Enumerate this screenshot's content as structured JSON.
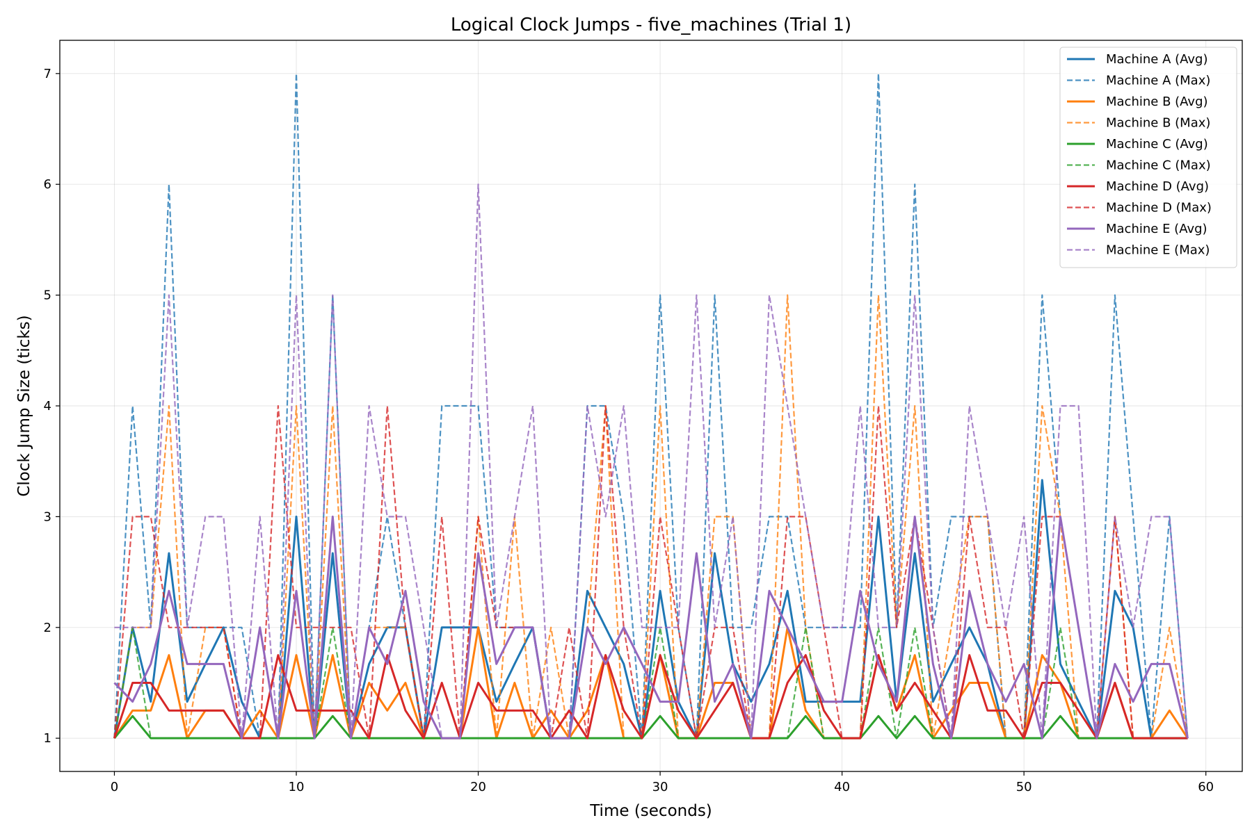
{
  "chart_data": {
    "type": "line",
    "title": "Logical Clock Jumps - five_machines (Trial 1)",
    "xlabel": "Time (seconds)",
    "ylabel": "Clock Jump Size (ticks)",
    "xlim": [
      -3,
      62
    ],
    "ylim": [
      0.7,
      7.3
    ],
    "xticks": [
      0,
      10,
      20,
      30,
      40,
      50,
      60
    ],
    "yticks": [
      1,
      2,
      3,
      4,
      5,
      6,
      7
    ],
    "grid": true,
    "legend_position": "top-right",
    "x": [
      0,
      1,
      2,
      3,
      4,
      5,
      6,
      7,
      8,
      9,
      10,
      11,
      12,
      13,
      14,
      15,
      16,
      17,
      18,
      19,
      20,
      21,
      22,
      23,
      24,
      25,
      26,
      27,
      28,
      29,
      30,
      31,
      32,
      33,
      34,
      35,
      36,
      37,
      38,
      39,
      40,
      41,
      42,
      43,
      44,
      45,
      46,
      47,
      48,
      49,
      50,
      51,
      52,
      53,
      54,
      55,
      56,
      57,
      58,
      59
    ],
    "series": [
      {
        "name": "Machine A (Avg)",
        "color": "#1f77b4",
        "style": "solid",
        "values": [
          1,
          2,
          1.33,
          2.67,
          1.33,
          1.67,
          2,
          1.33,
          1,
          1,
          3,
          1,
          2.67,
          1,
          1.67,
          2,
          2,
          1,
          2,
          2,
          2,
          1.33,
          1.67,
          2,
          1,
          1,
          2.33,
          2,
          1.67,
          1,
          2.33,
          1.33,
          1,
          2.67,
          1.67,
          1.33,
          1.67,
          2.33,
          1.33,
          1.33,
          1.33,
          1.33,
          3,
          1.33,
          2.67,
          1.33,
          1.67,
          2,
          1.67,
          1,
          1,
          3.33,
          1.67,
          1.33,
          1,
          2.33,
          2,
          1,
          1,
          1
        ]
      },
      {
        "name": "Machine A (Max)",
        "color": "#1f77b4",
        "style": "dashed",
        "values": [
          1,
          4,
          2,
          6,
          2,
          2,
          2,
          2,
          1,
          1,
          7,
          1,
          5,
          1,
          2,
          3,
          2,
          1,
          4,
          4,
          4,
          2,
          2,
          2,
          1,
          1,
          4,
          4,
          3,
          1,
          5,
          2,
          1,
          5,
          2,
          2,
          3,
          3,
          2,
          2,
          2,
          2,
          7,
          2,
          6,
          2,
          3,
          3,
          3,
          1,
          1,
          5,
          3,
          2,
          1,
          5,
          3,
          1,
          3,
          1
        ]
      },
      {
        "name": "Machine B (Avg)",
        "color": "#ff7f0e",
        "style": "solid",
        "values": [
          1,
          1.25,
          1.25,
          1.75,
          1,
          1.25,
          1.25,
          1,
          1.25,
          1,
          1.75,
          1,
          1.75,
          1,
          1.5,
          1.25,
          1.5,
          1,
          1,
          1,
          2,
          1,
          1.5,
          1,
          1.25,
          1,
          1.25,
          1.75,
          1,
          1,
          1.75,
          1,
          1,
          1.5,
          1.5,
          1,
          1,
          2,
          1.25,
          1,
          1,
          1,
          1.75,
          1.25,
          1.75,
          1,
          1.25,
          1.5,
          1.5,
          1,
          1,
          1.75,
          1.5,
          1,
          1,
          1.5,
          1,
          1,
          1.25,
          1
        ]
      },
      {
        "name": "Machine B (Max)",
        "color": "#ff7f0e",
        "style": "dashed",
        "values": [
          1,
          2,
          2,
          4,
          1,
          2,
          2,
          1,
          2,
          1,
          4,
          1,
          4,
          1,
          2,
          2,
          2,
          1,
          1,
          1,
          3,
          1,
          3,
          1,
          2,
          1,
          2,
          4,
          1,
          1,
          4,
          1,
          1,
          3,
          3,
          1,
          1,
          5,
          2,
          1,
          1,
          1,
          5,
          2,
          4,
          1,
          2,
          3,
          3,
          1,
          1,
          4,
          3,
          1,
          1,
          3,
          1,
          1,
          2,
          1
        ]
      },
      {
        "name": "Machine C (Avg)",
        "color": "#2ca02c",
        "style": "solid",
        "values": [
          1,
          1.2,
          1,
          1,
          1,
          1,
          1,
          1,
          1,
          1,
          1,
          1,
          1.2,
          1,
          1,
          1,
          1,
          1,
          1,
          1,
          1,
          1,
          1,
          1,
          1,
          1,
          1,
          1,
          1,
          1,
          1.2,
          1,
          1,
          1,
          1,
          1,
          1,
          1,
          1.2,
          1,
          1,
          1,
          1.2,
          1,
          1.2,
          1,
          1,
          1,
          1,
          1,
          1,
          1,
          1.2,
          1,
          1,
          1,
          1,
          1,
          1,
          1
        ]
      },
      {
        "name": "Machine C (Max)",
        "color": "#2ca02c",
        "style": "dashed",
        "values": [
          1,
          2,
          1,
          1,
          1,
          1,
          1,
          1,
          1,
          1,
          1,
          1,
          2,
          1,
          1,
          1,
          1,
          1,
          1,
          1,
          1,
          1,
          1,
          1,
          1,
          1,
          1,
          1,
          1,
          1,
          2,
          1,
          1,
          1,
          1,
          1,
          1,
          1,
          2,
          1,
          1,
          1,
          2,
          1,
          2,
          1,
          1,
          1,
          1,
          1,
          1,
          1,
          2,
          1,
          1,
          1,
          1,
          1,
          1,
          1
        ]
      },
      {
        "name": "Machine D (Avg)",
        "color": "#d62728",
        "style": "solid",
        "values": [
          1,
          1.5,
          1.5,
          1.25,
          1.25,
          1.25,
          1.25,
          1,
          1,
          1.75,
          1.25,
          1.25,
          1.25,
          1.25,
          1,
          1.75,
          1.25,
          1,
          1.5,
          1,
          1.5,
          1.25,
          1.25,
          1.25,
          1,
          1.25,
          1,
          1.75,
          1.25,
          1,
          1.75,
          1.25,
          1,
          1.25,
          1.5,
          1,
          1,
          1.5,
          1.75,
          1.25,
          1,
          1,
          1.75,
          1.25,
          1.5,
          1.25,
          1,
          1.75,
          1.25,
          1.25,
          1,
          1.5,
          1.5,
          1.25,
          1,
          1.5,
          1,
          1,
          1,
          1
        ]
      },
      {
        "name": "Machine D (Max)",
        "color": "#d62728",
        "style": "dashed",
        "values": [
          1,
          3,
          3,
          2,
          2,
          2,
          2,
          1,
          1,
          4,
          2,
          2,
          2,
          2,
          1,
          4,
          2,
          1,
          3,
          1,
          3,
          2,
          2,
          2,
          1,
          2,
          1,
          4,
          2,
          1,
          3,
          2,
          1,
          2,
          2,
          1,
          1,
          3,
          3,
          2,
          1,
          1,
          4,
          2,
          3,
          2,
          1,
          3,
          2,
          2,
          1,
          3,
          3,
          2,
          1,
          3,
          1,
          1,
          1,
          1
        ]
      },
      {
        "name": "Machine E (Avg)",
        "color": "#9467bd",
        "style": "solid",
        "values": [
          1.5,
          1.33,
          1.67,
          2.33,
          1.67,
          1.67,
          1.67,
          1,
          2,
          1,
          2.33,
          1,
          3,
          1,
          2,
          1.67,
          2.33,
          1.33,
          1,
          1,
          2.67,
          1.67,
          2,
          2,
          1,
          1,
          2,
          1.67,
          2,
          1.67,
          1.33,
          1.33,
          2.67,
          1.33,
          1.67,
          1,
          2.33,
          2,
          1.67,
          1.33,
          1.33,
          2.33,
          1.67,
          1.33,
          3,
          1.67,
          1,
          2.33,
          1.67,
          1.33,
          1.67,
          1,
          3,
          2,
          1,
          1.67,
          1.33,
          1.67,
          1.67,
          1
        ]
      },
      {
        "name": "Machine E (Max)",
        "color": "#9467bd",
        "style": "dashed",
        "values": [
          2,
          2,
          2,
          5,
          2,
          3,
          3,
          1,
          3,
          1,
          5,
          1,
          5,
          1,
          4,
          3,
          3,
          2,
          1,
          1,
          6,
          2,
          3,
          4,
          1,
          1,
          4,
          3,
          4,
          2,
          2,
          2,
          5,
          2,
          3,
          1,
          5,
          4,
          3,
          2,
          2,
          4,
          2,
          2,
          5,
          2,
          1,
          4,
          3,
          2,
          3,
          1,
          4,
          4,
          1,
          3,
          2,
          3,
          3,
          1
        ]
      }
    ]
  }
}
